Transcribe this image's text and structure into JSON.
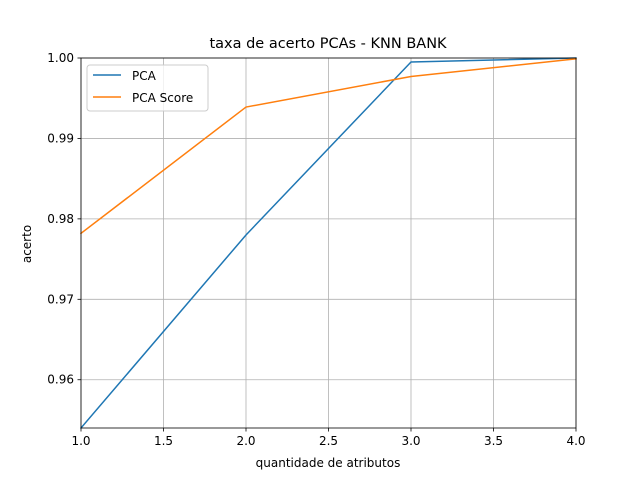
{
  "chart_data": {
    "type": "line",
    "title": "taxa de acerto PCAs - KNN BANK",
    "xlabel": "quantidade de atributos",
    "ylabel": "acerto",
    "xlim": [
      1.0,
      4.0
    ],
    "ylim": [
      0.954,
      1.0
    ],
    "grid": true,
    "legend_position": "upper left",
    "x": [
      1,
      2,
      3,
      4
    ],
    "x_ticks": [
      1.0,
      1.5,
      2.0,
      2.5,
      3.0,
      3.5,
      4.0
    ],
    "x_tick_labels": [
      "1.0",
      "1.5",
      "2.0",
      "2.5",
      "3.0",
      "3.5",
      "4.0"
    ],
    "y_ticks": [
      0.96,
      0.97,
      0.98,
      0.99,
      1.0
    ],
    "y_tick_labels": [
      "0.96",
      "0.97",
      "0.98",
      "0.99",
      "1.00"
    ],
    "series": [
      {
        "name": "PCA",
        "color": "#1f77b4",
        "values": [
          0.954,
          0.978,
          0.9995,
          1.0
        ]
      },
      {
        "name": "PCA Score",
        "color": "#ff7f0e",
        "values": [
          0.9782,
          0.9939,
          0.9977,
          0.9999
        ]
      }
    ]
  }
}
